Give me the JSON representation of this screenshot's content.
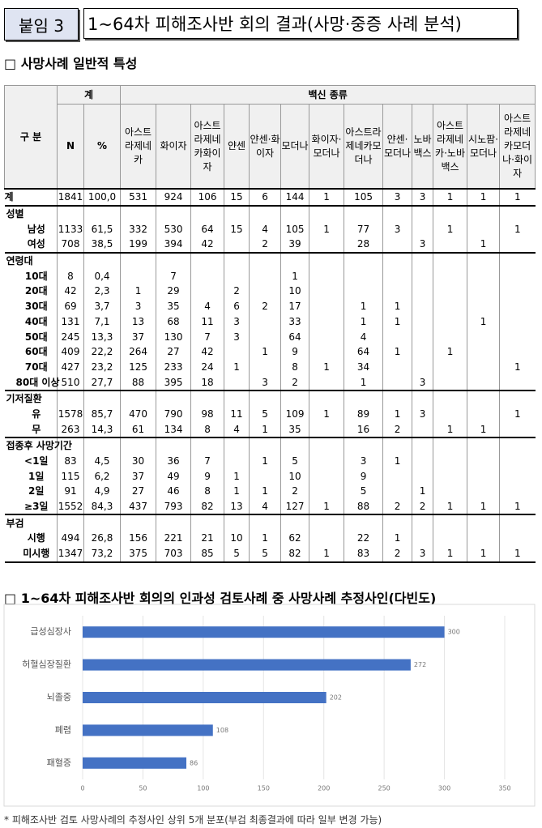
{
  "header": {
    "tag": "붙임 3",
    "title": "1~64차 피해조사반 회의 결과(사망·중증 사례 분석)"
  },
  "section1": "□ 사망사례 일반적 특성",
  "table": {
    "corner": "구 분",
    "total_group": "계",
    "vaccine_group": "백신 종류",
    "columns": [
      "N",
      "%",
      "아스트라제네카",
      "화이자",
      "아스트라제네카화이자",
      "얀센",
      "얀센·화이자",
      "모더나",
      "화이자·모더나",
      "아스트라제네카모더나",
      "얀센·모더나",
      "노바백스",
      "아스트라제네카·노바백스",
      "시노팜·모더나",
      "아스트라제네카모더나·화이자"
    ],
    "rows": [
      {
        "label": "계",
        "cells": [
          "1841",
          "100,0",
          "531",
          "924",
          "106",
          "15",
          "6",
          "144",
          "1",
          "105",
          "3",
          "3",
          "1",
          "1",
          "1"
        ]
      },
      {
        "label": "성별"
      },
      {
        "label": "남성",
        "cells": [
          "1133",
          "61,5",
          "332",
          "530",
          "64",
          "15",
          "4",
          "105",
          "1",
          "77",
          "3",
          null,
          "1",
          null,
          "1"
        ]
      },
      {
        "label": "여성",
        "cells": [
          "708",
          "38,5",
          "199",
          "394",
          "42",
          null,
          "2",
          "39",
          null,
          "28",
          null,
          "3",
          null,
          "1",
          null
        ]
      },
      {
        "label": "연령대"
      },
      {
        "label": "10대",
        "cells": [
          "8",
          "0,4",
          null,
          "7",
          null,
          null,
          null,
          "1",
          null,
          null,
          null,
          null,
          null,
          null,
          null
        ]
      },
      {
        "label": "20대",
        "cells": [
          "42",
          "2,3",
          "1",
          "29",
          null,
          "2",
          null,
          "10",
          null,
          null,
          null,
          null,
          null,
          null,
          null
        ]
      },
      {
        "label": "30대",
        "cells": [
          "69",
          "3,7",
          "3",
          "35",
          "4",
          "6",
          "2",
          "17",
          null,
          "1",
          "1",
          null,
          null,
          null,
          null
        ]
      },
      {
        "label": "40대",
        "cells": [
          "131",
          "7,1",
          "13",
          "68",
          "11",
          "3",
          null,
          "33",
          null,
          "1",
          "1",
          null,
          null,
          "1",
          null
        ]
      },
      {
        "label": "50대",
        "cells": [
          "245",
          "13,3",
          "37",
          "130",
          "7",
          "3",
          null,
          "64",
          null,
          "4",
          null,
          null,
          null,
          null,
          null
        ]
      },
      {
        "label": "60대",
        "cells": [
          "409",
          "22,2",
          "264",
          "27",
          "42",
          null,
          "1",
          "9",
          null,
          "64",
          "1",
          null,
          "1",
          null,
          null
        ]
      },
      {
        "label": "70대",
        "cells": [
          "427",
          "23,2",
          "125",
          "233",
          "24",
          "1",
          null,
          "8",
          "1",
          "34",
          null,
          null,
          null,
          null,
          "1"
        ]
      },
      {
        "label": "80대 이상",
        "cells": [
          "510",
          "27,7",
          "88",
          "395",
          "18",
          null,
          "3",
          "2",
          null,
          "1",
          null,
          "3",
          null,
          null,
          null
        ]
      },
      {
        "label": "기저질환"
      },
      {
        "label": "유",
        "cells": [
          "1578",
          "85,7",
          "470",
          "790",
          "98",
          "11",
          "5",
          "109",
          "1",
          "89",
          "1",
          "3",
          null,
          null,
          "1"
        ]
      },
      {
        "label": "무",
        "cells": [
          "263",
          "14,3",
          "61",
          "134",
          "8",
          "4",
          "1",
          "35",
          null,
          "16",
          "2",
          null,
          "1",
          "1",
          null
        ]
      },
      {
        "label": "접종후 사망기간"
      },
      {
        "label": "<1일",
        "cells": [
          "83",
          "4,5",
          "30",
          "36",
          "7",
          null,
          "1",
          "5",
          null,
          "3",
          "1",
          null,
          null,
          null,
          null
        ]
      },
      {
        "label": "1일",
        "cells": [
          "115",
          "6,2",
          "37",
          "49",
          "9",
          "1",
          null,
          "10",
          null,
          "9",
          null,
          null,
          null,
          null,
          null
        ]
      },
      {
        "label": "2일",
        "cells": [
          "91",
          "4,9",
          "27",
          "46",
          "8",
          "1",
          "1",
          "2",
          null,
          "5",
          null,
          "1",
          null,
          null,
          null
        ]
      },
      {
        "label": "≥3일",
        "cells": [
          "1552",
          "84,3",
          "437",
          "793",
          "82",
          "13",
          "4",
          "127",
          "1",
          "88",
          "2",
          "2",
          "1",
          "1",
          "1"
        ]
      },
      {
        "label": "부검"
      },
      {
        "label": "시행",
        "cells": [
          "494",
          "26,8",
          "156",
          "221",
          "21",
          "10",
          "1",
          "62",
          null,
          "22",
          "1",
          null,
          null,
          null,
          null
        ]
      },
      {
        "label": "미시행",
        "cells": [
          "1347",
          "73,2",
          "375",
          "703",
          "85",
          "5",
          "5",
          "82",
          "1",
          "83",
          "2",
          "3",
          "1",
          "1",
          "1"
        ]
      }
    ]
  },
  "section2": "□ 1~64차 피해조사반 회의의 인과성 검토사례 중 사망사례 추정사인(다빈도)",
  "chart_data": {
    "type": "bar",
    "orientation": "horizontal",
    "categories": [
      "급성심장사",
      "허혈심장질환",
      "뇌졸중",
      "폐렴",
      "패혈증"
    ],
    "values": [
      300,
      272,
      202,
      108,
      86
    ],
    "color": "#4472c4",
    "xlim": [
      0,
      350
    ],
    "xticks": [
      0,
      50,
      100,
      150,
      200,
      250,
      300,
      350
    ],
    "grid": true
  },
  "footnote": "* 피해조사반 검토 사망사례의 추정사인 상위 5개 분포(부검 최종결과에 따라 일부 변경 가능)"
}
